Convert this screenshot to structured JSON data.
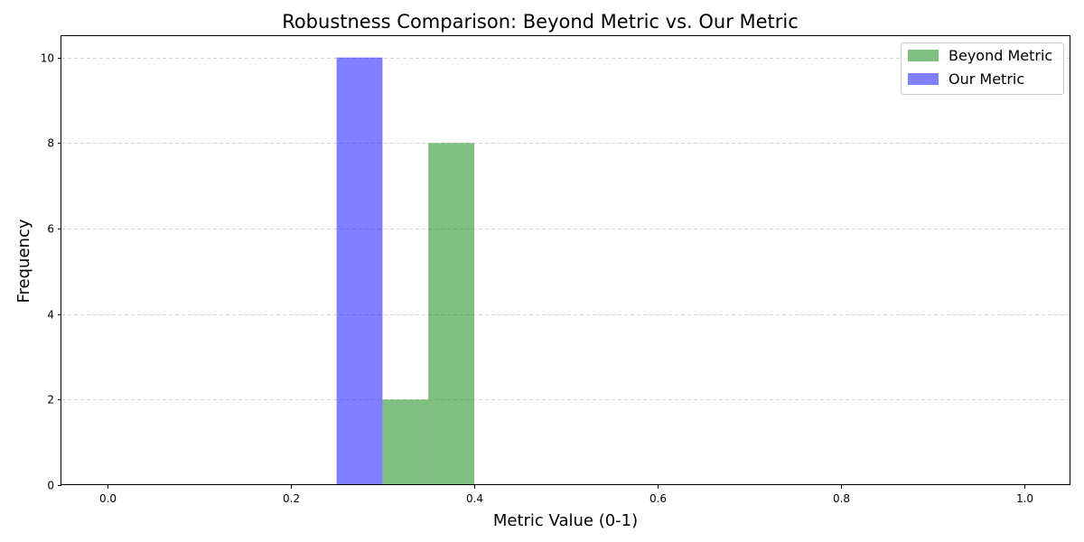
{
  "chart_data": {
    "type": "bar",
    "title": "Robustness Comparison: Beyond Metric vs. Our Metric",
    "xlabel": "Metric Value (0-1)",
    "ylabel": "Frequency",
    "xlim": [
      -0.05,
      1.05
    ],
    "ylim": [
      0,
      10.5
    ],
    "xticks": [
      0.0,
      0.2,
      0.4,
      0.6,
      0.8,
      1.0
    ],
    "xtick_labels": [
      "0.0",
      "0.2",
      "0.4",
      "0.6",
      "0.8",
      "1.0"
    ],
    "yticks": [
      0,
      2,
      4,
      6,
      8,
      10
    ],
    "ytick_labels": [
      "0",
      "2",
      "4",
      "6",
      "8",
      "10"
    ],
    "grid": "y-dashed",
    "legend_position": "top-right",
    "bin_width": 0.05,
    "series": [
      {
        "name": "Beyond Metric",
        "color": "#008000",
        "alpha": 0.5,
        "bins": [
          {
            "start": 0.3,
            "end": 0.35,
            "value": 2
          },
          {
            "start": 0.35,
            "end": 0.4,
            "value": 8
          }
        ]
      },
      {
        "name": "Our Metric",
        "color": "#0000ff",
        "alpha": 0.5,
        "bins": [
          {
            "start": 0.25,
            "end": 0.3,
            "value": 10
          }
        ]
      }
    ]
  }
}
